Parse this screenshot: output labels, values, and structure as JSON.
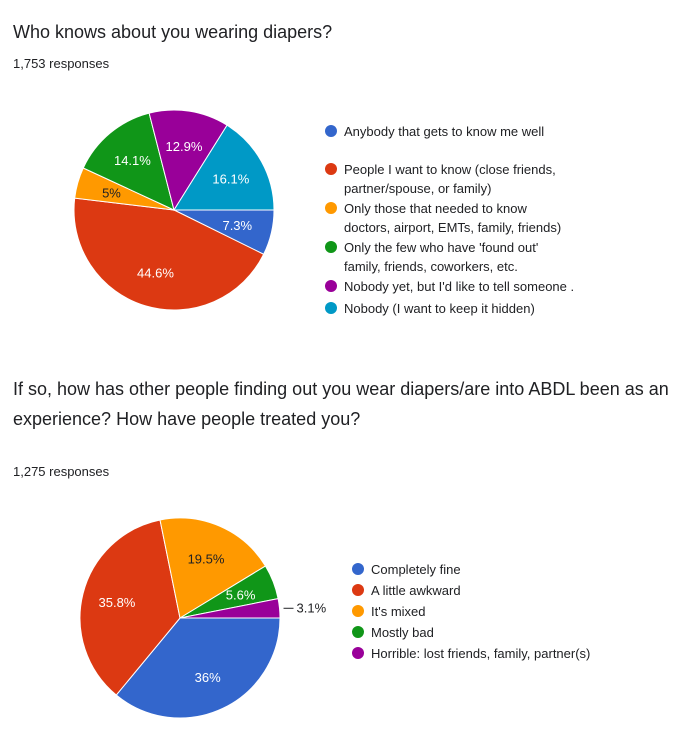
{
  "questions": [
    {
      "title": "Who knows about you wearing diapers?",
      "responses": "1,753 responses"
    },
    {
      "title": "If so, how has other people finding out you wear diapers/are into ABDL been as an experience? How have people treated you?",
      "responses": "1,275 responses"
    }
  ],
  "chart_data": [
    {
      "type": "pie",
      "title": "Who knows about you wearing diapers?",
      "categories": [
        "Anybody that gets to know me well",
        "People I want to know (close friends, partner/spouse, or family)",
        "Only those that needed to know doctors, airport, EMTs, family, friends)",
        "Only the few who have 'found out' family, friends, coworkers, etc.",
        "Nobody yet, but I'd like to tell someone .",
        "Nobody (I want to keep it hidden)"
      ],
      "values": [
        7.3,
        44.6,
        5,
        14.1,
        12.9,
        16.1
      ],
      "labels": [
        "7.3%",
        "44.6%",
        "5%",
        "14.1%",
        "12.9%",
        "16.1%"
      ],
      "colors": [
        "#3366cc",
        "#dc3912",
        "#ff9900",
        "#109618",
        "#990099",
        "#0099c6"
      ],
      "label_colors": [
        "#ffffff",
        "#ffffff",
        "#202124",
        "#ffffff",
        "#ffffff",
        "#ffffff"
      ],
      "legend_position": "right"
    },
    {
      "type": "pie",
      "title": "If so, how has other people finding out you wear diapers/are into ABDL been as an experience? How have people treated you?",
      "categories": [
        "Completely fine",
        "A little awkward",
        "It's mixed",
        "Mostly bad",
        "Horrible: lost friends, family, partner(s)"
      ],
      "values": [
        36,
        35.8,
        19.5,
        5.6,
        3.1
      ],
      "labels": [
        "36%",
        "35.8%",
        "19.5%",
        "5.6%",
        "3.1%"
      ],
      "colors": [
        "#3366cc",
        "#dc3912",
        "#ff9900",
        "#109618",
        "#990099"
      ],
      "label_colors": [
        "#ffffff",
        "#ffffff",
        "#202124",
        "#ffffff",
        "#202124"
      ],
      "legend_position": "right"
    }
  ]
}
